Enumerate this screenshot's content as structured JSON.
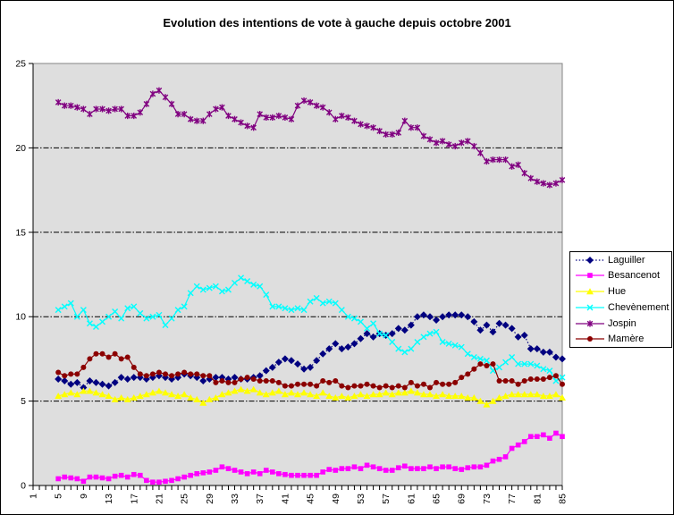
{
  "chart_data": {
    "type": "line",
    "title": "Evolution des intentions de vote à gauche depuis octobre 2001",
    "xlabel": "",
    "ylabel": "",
    "x_first_category": 1,
    "x_last_category": 85,
    "x_tick_labels": [
      "1",
      "5",
      "9",
      "13",
      "17",
      "21",
      "25",
      "29",
      "33",
      "37",
      "41",
      "45",
      "49",
      "53",
      "57",
      "61",
      "65",
      "69",
      "73",
      "77",
      "81",
      "85"
    ],
    "ylim": [
      0,
      25
    ],
    "y_ticks": [
      0,
      5,
      10,
      15,
      20,
      25
    ],
    "gridlines_at": [
      5,
      10,
      15,
      20
    ],
    "grid_style": "dash-dot",
    "plot_bg": "#dedede",
    "plot_border_color": "#848484",
    "axis_color": "#000000",
    "legend_position": "right",
    "series_start_x": 5,
    "series": [
      {
        "name": "Laguiller",
        "color": "#000080",
        "marker": "diamond",
        "line": "dot",
        "values": [
          6.3,
          6.2,
          6.0,
          6.1,
          5.8,
          6.2,
          6.1,
          6.0,
          5.9,
          6.1,
          6.4,
          6.3,
          6.4,
          6.4,
          6.3,
          6.4,
          6.5,
          6.4,
          6.3,
          6.4,
          6.6,
          6.5,
          6.4,
          6.2,
          6.3,
          6.4,
          6.4,
          6.3,
          6.4,
          6.3,
          6.3,
          6.4,
          6.5,
          6.8,
          7.0,
          7.3,
          7.5,
          7.4,
          7.2,
          6.9,
          7.0,
          7.4,
          7.8,
          8.1,
          8.4,
          8.1,
          8.2,
          8.4,
          8.7,
          9.0,
          8.8,
          9.0,
          8.9,
          9.0,
          9.3,
          9.2,
          9.5,
          10.0,
          10.1,
          10.0,
          9.8,
          10.0,
          10.1,
          10.1,
          10.1,
          10.0,
          9.7,
          9.2,
          9.5,
          9.1,
          9.6,
          9.5,
          9.3,
          8.8,
          8.9,
          8.1,
          8.1,
          7.9,
          7.9,
          7.6,
          7.5
        ]
      },
      {
        "name": "Besancenot",
        "color": "#ff00ff",
        "marker": "square",
        "line": "solid",
        "values": [
          0.4,
          0.5,
          0.45,
          0.4,
          0.25,
          0.5,
          0.5,
          0.45,
          0.4,
          0.55,
          0.6,
          0.5,
          0.65,
          0.6,
          0.3,
          0.2,
          0.2,
          0.25,
          0.3,
          0.4,
          0.5,
          0.6,
          0.7,
          0.75,
          0.8,
          0.9,
          1.1,
          1.0,
          0.9,
          0.8,
          0.7,
          0.8,
          0.7,
          0.9,
          0.8,
          0.7,
          0.65,
          0.6,
          0.6,
          0.6,
          0.6,
          0.6,
          0.8,
          0.95,
          0.9,
          1.0,
          1.0,
          1.1,
          1.0,
          1.2,
          1.1,
          1.0,
          0.9,
          0.9,
          1.05,
          1.15,
          1.0,
          1.0,
          1.0,
          1.1,
          1.0,
          1.1,
          1.1,
          1.0,
          0.95,
          1.05,
          1.1,
          1.1,
          1.2,
          1.45,
          1.55,
          1.7,
          2.2,
          2.4,
          2.6,
          2.9,
          2.9,
          3.0,
          2.8,
          3.1,
          2.9
        ]
      },
      {
        "name": "Hue",
        "color": "#ffff00",
        "marker": "triangle",
        "line": "solid",
        "values": [
          5.3,
          5.4,
          5.5,
          5.4,
          5.6,
          5.6,
          5.5,
          5.4,
          5.3,
          5.1,
          5.2,
          5.1,
          5.2,
          5.3,
          5.4,
          5.5,
          5.6,
          5.5,
          5.4,
          5.3,
          5.4,
          5.2,
          5.1,
          4.9,
          5.1,
          5.2,
          5.4,
          5.5,
          5.6,
          5.7,
          5.6,
          5.7,
          5.5,
          5.4,
          5.5,
          5.6,
          5.4,
          5.5,
          5.4,
          5.5,
          5.4,
          5.3,
          5.5,
          5.3,
          5.2,
          5.3,
          5.2,
          5.3,
          5.4,
          5.3,
          5.4,
          5.4,
          5.5,
          5.4,
          5.5,
          5.5,
          5.6,
          5.5,
          5.4,
          5.4,
          5.3,
          5.4,
          5.3,
          5.3,
          5.3,
          5.2,
          5.2,
          5.0,
          4.8,
          5.0,
          5.2,
          5.3,
          5.4,
          5.4,
          5.4,
          5.4,
          5.4,
          5.3,
          5.3,
          5.4,
          5.2
        ]
      },
      {
        "name": "Chevènement",
        "color": "#00ffff",
        "marker": "x",
        "line": "solid",
        "values": [
          10.4,
          10.6,
          10.8,
          10.0,
          10.4,
          9.6,
          9.4,
          9.7,
          10.0,
          10.3,
          9.9,
          10.5,
          10.6,
          10.2,
          9.9,
          10.0,
          10.1,
          9.5,
          9.9,
          10.4,
          10.6,
          11.4,
          11.8,
          11.6,
          11.7,
          11.8,
          11.5,
          11.6,
          12.0,
          12.3,
          12.1,
          11.9,
          11.8,
          11.3,
          10.6,
          10.6,
          10.5,
          10.4,
          10.5,
          10.4,
          10.9,
          11.1,
          10.8,
          10.9,
          10.8,
          10.4,
          10.0,
          9.9,
          9.7,
          9.3,
          9.6,
          9.0,
          8.9,
          8.5,
          8.1,
          7.9,
          8.1,
          8.5,
          8.8,
          9.0,
          9.1,
          8.5,
          8.4,
          8.3,
          8.2,
          7.8,
          7.6,
          7.5,
          7.4,
          6.8,
          7.0,
          7.3,
          7.6,
          7.2,
          7.2,
          7.2,
          7.1,
          6.9,
          6.8,
          6.2,
          6.4
        ]
      },
      {
        "name": "Jospin",
        "color": "#800080",
        "marker": "star",
        "line": "solid",
        "values": [
          22.7,
          22.5,
          22.5,
          22.4,
          22.3,
          22.0,
          22.3,
          22.3,
          22.2,
          22.3,
          22.3,
          21.9,
          21.9,
          22.1,
          22.6,
          23.2,
          23.4,
          23.0,
          22.6,
          22.0,
          22.0,
          21.7,
          21.6,
          21.6,
          22.0,
          22.3,
          22.4,
          21.9,
          21.7,
          21.5,
          21.3,
          21.2,
          22.0,
          21.8,
          21.8,
          21.9,
          21.8,
          21.7,
          22.5,
          22.8,
          22.7,
          22.5,
          22.4,
          22.1,
          21.7,
          21.9,
          21.8,
          21.6,
          21.4,
          21.3,
          21.2,
          21.0,
          20.8,
          20.8,
          20.9,
          21.6,
          21.2,
          21.2,
          20.7,
          20.5,
          20.3,
          20.4,
          20.2,
          20.1,
          20.3,
          20.4,
          20.1,
          19.7,
          19.2,
          19.3,
          19.3,
          19.3,
          18.9,
          19.0,
          18.5,
          18.2,
          18.0,
          17.9,
          17.8,
          17.9,
          18.1
        ]
      },
      {
        "name": "Mamère",
        "color": "#8b0000",
        "marker": "circle",
        "line": "solid",
        "values": [
          6.7,
          6.5,
          6.6,
          6.6,
          7.0,
          7.5,
          7.8,
          7.8,
          7.6,
          7.8,
          7.5,
          7.6,
          7.0,
          6.6,
          6.5,
          6.6,
          6.7,
          6.6,
          6.5,
          6.6,
          6.7,
          6.6,
          6.6,
          6.5,
          6.5,
          6.1,
          6.2,
          6.1,
          6.1,
          6.3,
          6.4,
          6.3,
          6.2,
          6.2,
          6.2,
          6.1,
          5.9,
          5.9,
          6.0,
          6.0,
          6.0,
          5.9,
          6.2,
          6.1,
          6.2,
          5.9,
          5.8,
          5.9,
          5.9,
          6.0,
          5.9,
          5.8,
          5.9,
          5.8,
          5.9,
          5.8,
          6.1,
          5.9,
          6.0,
          5.8,
          6.1,
          6.0,
          6.0,
          6.1,
          6.4,
          6.6,
          6.9,
          7.2,
          7.1,
          7.2,
          6.2,
          6.2,
          6.2,
          6.0,
          6.2,
          6.3,
          6.3,
          6.3,
          6.4,
          6.5,
          6.0
        ]
      }
    ]
  }
}
